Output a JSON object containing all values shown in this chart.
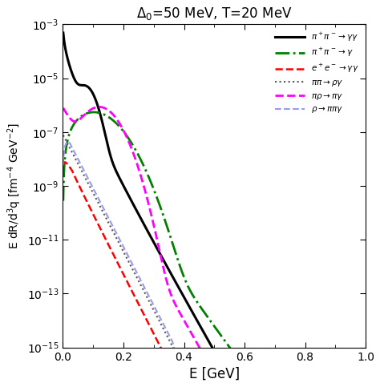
{
  "title": "$\\Delta_0$=50 MeV, T=20 MeV",
  "xlabel": "E [GeV]",
  "ylabel": "E dR/d$^3$q [fm$^{-4}$ GeV$^{-2}$]",
  "xlim": [
    0,
    1.0
  ],
  "ylim": [
    1e-15,
    0.001
  ],
  "T_GeV": 0.02,
  "lines": [
    {
      "label": "$\\pi^+\\pi^- \\to \\gamma\\gamma$",
      "color": "black",
      "linestyle": "solid",
      "linewidth": 2.2
    },
    {
      "label": "$\\pi^+\\pi^- \\to \\gamma$",
      "color": "green",
      "linestyle": "dashdot",
      "linewidth": 2.0
    },
    {
      "label": "$e^+e^- \\to \\gamma\\gamma$",
      "color": "red",
      "linestyle": "dashed",
      "linewidth": 1.8
    },
    {
      "label": "$\\pi\\pi \\to \\rho\\gamma$",
      "color": "#555555",
      "linestyle": "dotted",
      "linewidth": 1.5
    },
    {
      "label": "$\\pi\\rho \\to \\pi\\gamma$",
      "color": "magenta",
      "linestyle": "dashed",
      "linewidth": 2.0
    },
    {
      "label": "$\\rho \\to \\pi\\pi\\gamma$",
      "color": "#9999ee",
      "linestyle": "dashed",
      "linewidth": 1.5
    }
  ]
}
